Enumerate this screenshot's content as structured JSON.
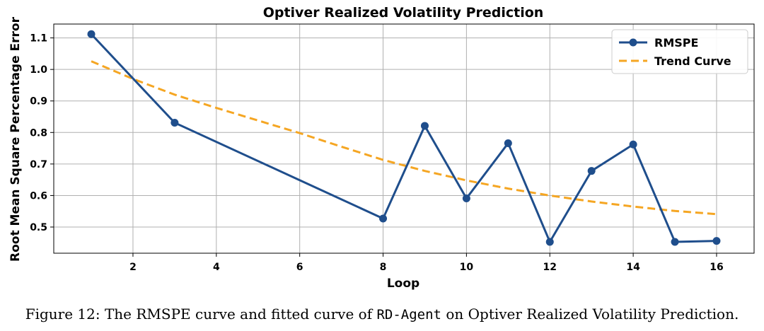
{
  "chart_data": {
    "type": "line",
    "title": "Optiver Realized Volatility Prediction",
    "xlabel": "Loop",
    "ylabel": "Root Mean Square Percentage Error",
    "xlim": [
      0.1,
      16.9
    ],
    "ylim": [
      0.417,
      1.144
    ],
    "x_ticks": [
      2,
      4,
      6,
      8,
      10,
      12,
      14,
      16
    ],
    "y_ticks": [
      0.5,
      0.6,
      0.7,
      0.8,
      0.9,
      1.0,
      1.1
    ],
    "grid": true,
    "legend_position": "top-right",
    "series": [
      {
        "name": "RMSPE",
        "style": "solid-markers",
        "color": "#1f4e8c",
        "x": [
          1,
          3,
          8,
          9,
          10,
          11,
          12,
          13,
          14,
          15,
          16
        ],
        "y": [
          1.112,
          0.831,
          0.527,
          0.821,
          0.591,
          0.766,
          0.453,
          0.678,
          0.762,
          0.453,
          0.456
        ]
      },
      {
        "name": "Trend Curve",
        "style": "dashed",
        "color": "#f5a623",
        "x": [
          1,
          2,
          3,
          4,
          5,
          6,
          7,
          8,
          9,
          10,
          11,
          12,
          13,
          14,
          15,
          16
        ],
        "y": [
          1.026,
          0.97,
          0.92,
          0.878,
          0.838,
          0.798,
          0.755,
          0.713,
          0.678,
          0.648,
          0.622,
          0.6,
          0.581,
          0.565,
          0.551,
          0.541
        ]
      }
    ]
  },
  "caption": {
    "before": "Figure 12: The RMSPE curve and fitted curve of ",
    "code": "RD-Agent",
    "after": " on Optiver Realized Volatility Prediction."
  }
}
